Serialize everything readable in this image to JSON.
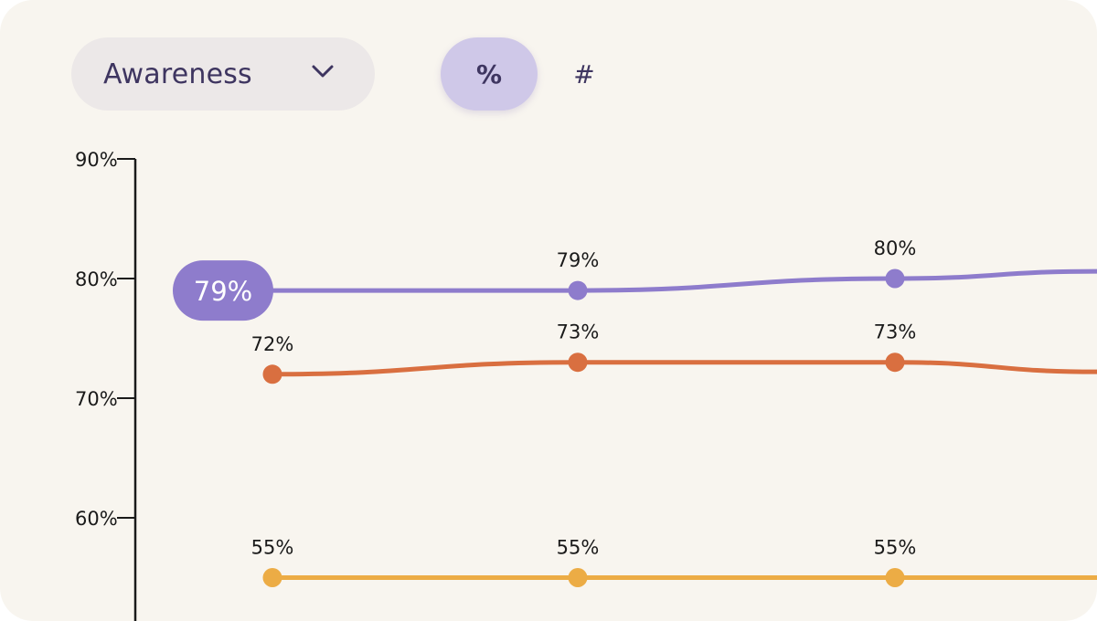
{
  "controls": {
    "metric_selected": "Awareness",
    "toggle_percent": "%",
    "toggle_count": "#",
    "active_toggle": "percent"
  },
  "colors": {
    "card_bg": "#f8f5ef",
    "purple": "#8e7ccc",
    "orange": "#d96f40",
    "yellow": "#ecac45",
    "axis": "#1a1a1a",
    "dropdown_bg": "#ece8e8",
    "toggle_active_bg": "#cfc8e8",
    "control_text": "#3e3560"
  },
  "chart_data": {
    "type": "line",
    "x": [
      0,
      1,
      2,
      3
    ],
    "ylim": [
      52,
      90
    ],
    "yticks": [
      60,
      70,
      80,
      90
    ],
    "ytick_labels": [
      "60%",
      "70%",
      "80%",
      "90%"
    ],
    "grid": false,
    "highlight": {
      "series": 0,
      "label": "79%"
    },
    "series": [
      {
        "color": "#8e7ccc",
        "values": [
          79,
          79,
          80,
          80.6
        ],
        "labels": [
          "",
          "79%",
          "80%",
          ""
        ]
      },
      {
        "color": "#d96f40",
        "values": [
          72,
          73,
          73,
          72.2
        ],
        "labels": [
          "72%",
          "73%",
          "73%",
          ""
        ]
      },
      {
        "color": "#ecac45",
        "values": [
          55,
          55,
          55,
          55
        ],
        "labels": [
          "55%",
          "55%",
          "55%",
          ""
        ]
      }
    ]
  }
}
